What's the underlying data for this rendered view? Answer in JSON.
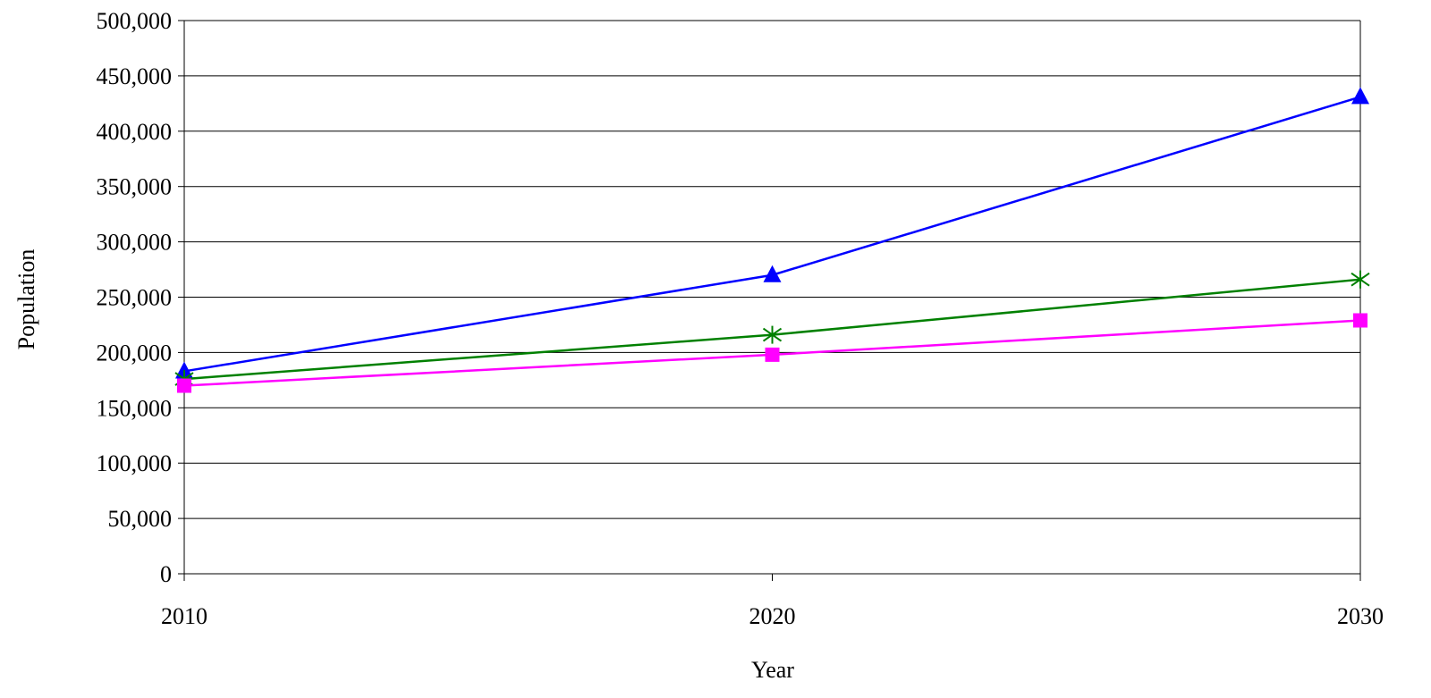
{
  "chart_data": {
    "type": "line",
    "title": "",
    "xlabel": "Year",
    "ylabel": "Population",
    "x": [
      2010,
      2020,
      2030
    ],
    "x_tick_labels": [
      "2010",
      "2020",
      "2030"
    ],
    "ylim": [
      0,
      500000
    ],
    "y_ticks": [
      0,
      50000,
      100000,
      150000,
      200000,
      250000,
      300000,
      350000,
      400000,
      450000,
      500000
    ],
    "y_tick_labels": [
      "0",
      "50,000",
      "100,000",
      "150,000",
      "200,000",
      "250,000",
      "300,000",
      "350,000",
      "400,000",
      "450,000",
      "500,000"
    ],
    "grid": "horizontal",
    "legend": "none",
    "series": [
      {
        "marker": "triangle",
        "color": "#0000ff",
        "values": [
          183000,
          270000,
          431000
        ]
      },
      {
        "marker": "asterisk",
        "color": "#008000",
        "values": [
          176000,
          216000,
          266000
        ]
      },
      {
        "marker": "square",
        "color": "#ff00ff",
        "values": [
          170000,
          198000,
          229000
        ]
      }
    ]
  }
}
